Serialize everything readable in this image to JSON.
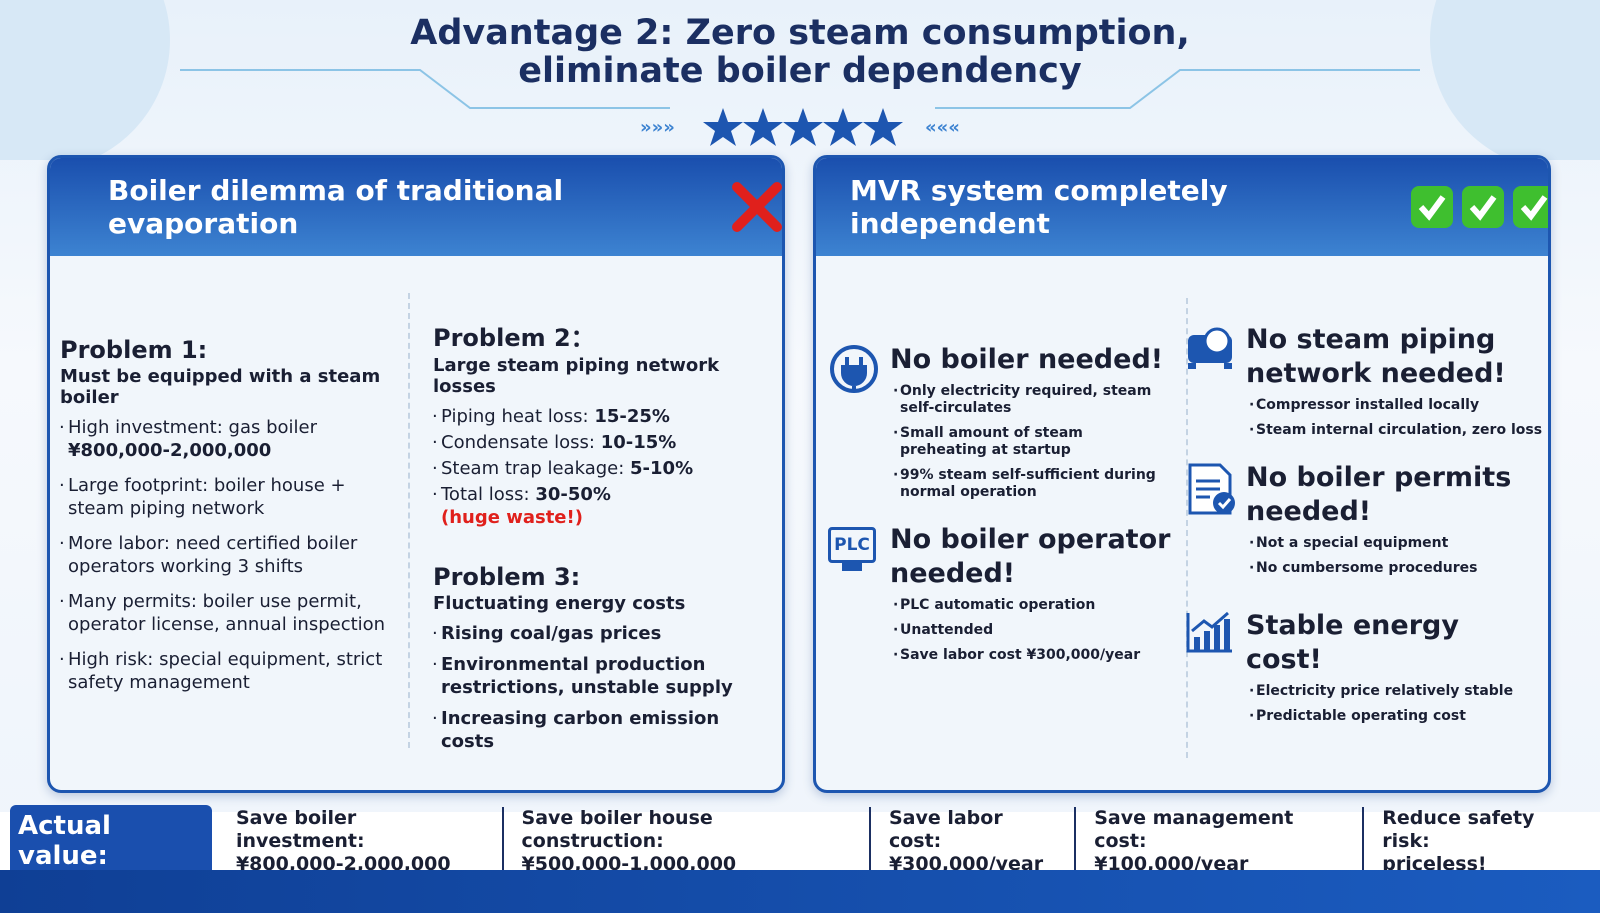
{
  "header": {
    "title_lines": [
      "Advantage 2: Zero steam consumption,",
      "eliminate boiler dependency"
    ]
  },
  "left_panel": {
    "title": "Boiler dilemma of traditional evaporation",
    "problems": [
      {
        "heading": "Problem 1:",
        "subtitle": "Must be equipped with a steam boiler",
        "items": [
          {
            "text": "High investment: gas boiler",
            "bold": "¥800,000-2,000,000"
          },
          {
            "text": "Large footprint: boiler house + steam piping network"
          },
          {
            "text": "More labor: need certified boiler operators working 3 shifts"
          },
          {
            "text": "Many permits: boiler use permit, operator license, annual inspection"
          },
          {
            "text": "High risk: special equipment, strict safety management"
          }
        ]
      },
      {
        "heading": "Problem 2：",
        "subtitle": "Large steam piping network losses",
        "items": [
          {
            "text": "Piping heat loss:",
            "bold": "15-25%"
          },
          {
            "text": "Condensate loss:",
            "bold": "10-15%"
          },
          {
            "text": "Steam trap leakage:",
            "bold": "5-10%"
          },
          {
            "text": "Total loss:",
            "bold": "30-50%",
            "note": "(huge waste!)"
          }
        ]
      },
      {
        "heading": "Problem 3:",
        "subtitle": "Fluctuating energy costs",
        "items": [
          {
            "bold": "Rising coal/gas prices"
          },
          {
            "bold": "Environmental production restrictions, unstable supply"
          },
          {
            "bold": "Increasing carbon emission costs"
          }
        ]
      }
    ]
  },
  "right_panel": {
    "title": "MVR system completely independent",
    "features": [
      {
        "heading": "No boiler needed!",
        "items": [
          "Only electricity required, steam self-circulates",
          "Small amount of steam preheating at startup",
          "99% steam self-sufficient during normal operation"
        ]
      },
      {
        "heading": "No boiler operator needed!",
        "icon_label": "PLC",
        "items": [
          "PLC automatic operation",
          "Unattended",
          "Save labor cost ¥300,000/year"
        ]
      },
      {
        "heading": "No steam piping network needed!",
        "items": [
          "Compressor installed locally",
          "Steam internal circulation, zero loss"
        ]
      },
      {
        "heading": "No boiler permits needed!",
        "items": [
          "Not a special equipment",
          "No cumbersome procedures"
        ]
      },
      {
        "heading": "Stable energy cost!",
        "items": [
          "Electricity price relatively stable",
          "Predictable operating cost"
        ]
      }
    ]
  },
  "footer": {
    "label": "Actual value:",
    "items": [
      {
        "label": "Save boiler investment:",
        "value": "¥800,000-2,000,000"
      },
      {
        "label": "Save boiler house construction:",
        "value": "¥500,000-1,000,000"
      },
      {
        "label": "Save labor cost:",
        "value": "¥300,000/year"
      },
      {
        "label": "Save management cost:",
        "value": "¥100,000/year"
      },
      {
        "label": "Reduce safety risk:",
        "value": "priceless!"
      }
    ]
  }
}
